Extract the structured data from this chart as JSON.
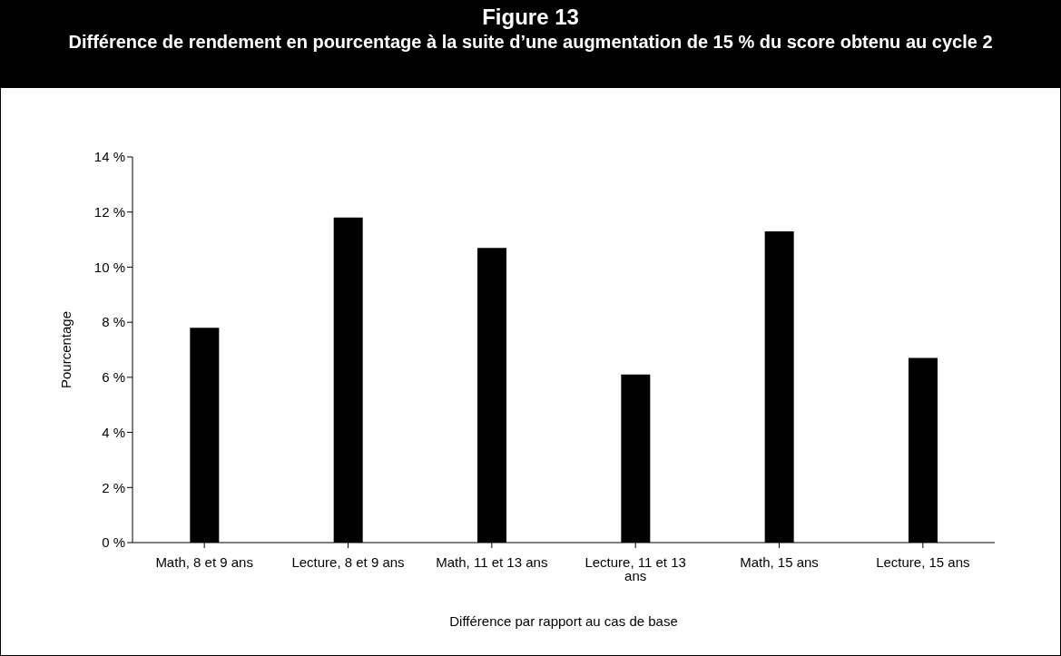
{
  "chart_data": {
    "type": "bar",
    "title": "Figure 13",
    "subtitle": "Différence de rendement en pourcentage à la suite d’une augmentation de 15 % du score obtenu au cycle 2",
    "xlabel": "Différence par rapport au cas de base",
    "ylabel": "Pourcentage",
    "categories": [
      "Math, 8 et 9 ans",
      "Lecture, 8 et 9 ans",
      "Math, 11 et 13 ans",
      "Lecture, 11 et 13 ans",
      "Math, 15 ans",
      "Lecture, 15 ans"
    ],
    "values": [
      7.8,
      11.8,
      10.7,
      6.1,
      11.3,
      6.7
    ],
    "color": "#000000",
    "ylim": [
      0,
      14
    ],
    "yticks": [
      {
        "value": 0,
        "label": "0 %"
      },
      {
        "value": 2,
        "label": "2 %"
      },
      {
        "value": 4,
        "label": "4 %"
      },
      {
        "value": 6,
        "label": "6 %"
      },
      {
        "value": 8,
        "label": "8 %"
      },
      {
        "value": 10,
        "label": "10 %"
      },
      {
        "value": 12,
        "label": "12 %"
      },
      {
        "value": 14,
        "label": "14 %"
      }
    ],
    "grid": false,
    "legend": false
  }
}
